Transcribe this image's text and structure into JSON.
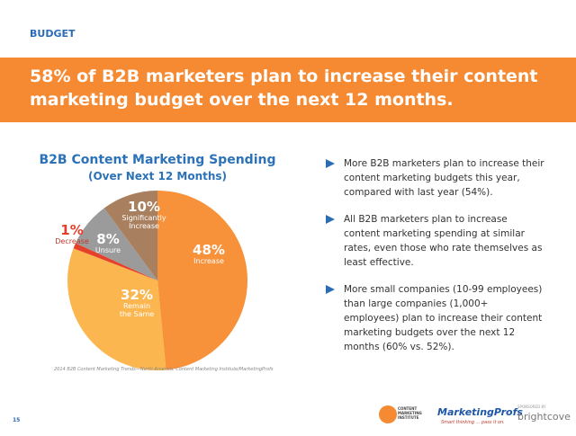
{
  "header": {
    "section": "BUDGET",
    "headline": "58% of B2B marketers plan to increase their content marketing budget over the next 12 months."
  },
  "chart_data": {
    "type": "pie",
    "title": "B2B Content Marketing Spending",
    "subtitle": "(Over Next 12 Months)",
    "categories": [
      "Increase",
      "Remain the Same",
      "Decrease",
      "Unsure",
      "Significantly Increase"
    ],
    "values": [
      48,
      32,
      1,
      8,
      10
    ],
    "value_labels": [
      "48%",
      "32%",
      "1%",
      "8%",
      "10%"
    ],
    "colors": [
      "#f7923a",
      "#fbb64f",
      "#e5402b",
      "#9b9b9b",
      "#a9805f"
    ]
  },
  "source": "2014 B2B Content Marketing Trends—North America: Content Marketing Institute/MarketingProfs",
  "bullets": [
    "More B2B marketers plan to increase their content marketing budgets this year, compared with last year (54%).",
    "All B2B marketers plan to increase content marketing spending at similar rates, even those who rate themselves as least effective.",
    "More small companies (10-99 employees) than large companies (1,000+ employees) plan to increase their content marketing budgets over the next 12 months (60% vs. 52%)."
  ],
  "footer": {
    "page": "15",
    "cmi": "CONTENT MARKETING INSTITUTE",
    "mp": "MarketingProfs",
    "mp_tagline": "Smart thinking ... pass it on.",
    "sponsored": "SPONSORED BY",
    "sponsor": "brightcove"
  }
}
